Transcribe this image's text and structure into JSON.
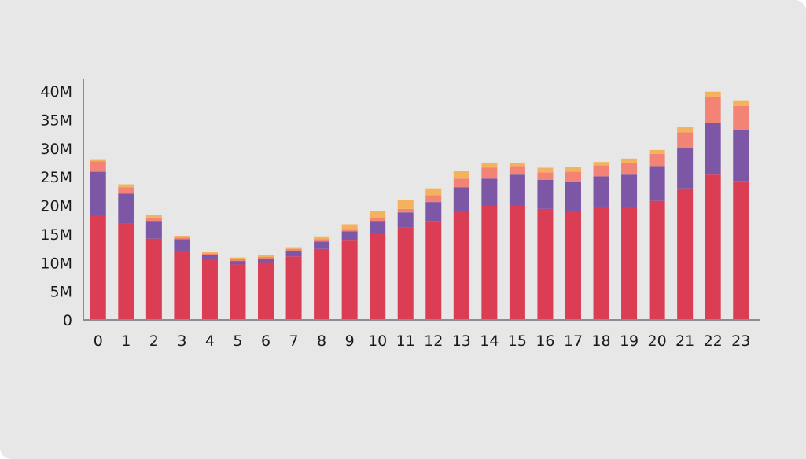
{
  "chart_data": {
    "type": "bar",
    "stacked": true,
    "title": "",
    "xlabel": "",
    "ylabel": "",
    "categories": [
      "0",
      "1",
      "2",
      "3",
      "4",
      "5",
      "6",
      "7",
      "8",
      "9",
      "10",
      "11",
      "12",
      "13",
      "14",
      "15",
      "16",
      "17",
      "18",
      "19",
      "20",
      "21",
      "22",
      "23"
    ],
    "ylim": [
      0,
      40000000
    ],
    "y_ticks": [
      0,
      5000000,
      10000000,
      15000000,
      20000000,
      25000000,
      30000000,
      35000000,
      40000000
    ],
    "y_tick_labels": [
      "0",
      "5M",
      "10M",
      "15M",
      "20M",
      "25M",
      "30M",
      "35M",
      "40M"
    ],
    "grid": false,
    "legend": false,
    "series": [
      {
        "color": "#da3d54",
        "values": [
          18400000,
          16900000,
          14200000,
          12100000,
          10600000,
          9700000,
          10100000,
          11100000,
          12400000,
          14000000,
          15200000,
          16100000,
          17300000,
          19100000,
          20000000,
          20000000,
          19400000,
          19100000,
          19800000,
          19700000,
          20800000,
          23000000,
          25400000,
          24300000
        ]
      },
      {
        "color": "#7d57a6",
        "values": [
          7500000,
          5200000,
          3100000,
          2000000,
          700000,
          600000,
          600000,
          1000000,
          1300000,
          1500000,
          2100000,
          2700000,
          3300000,
          4100000,
          4700000,
          5400000,
          5100000,
          5000000,
          5300000,
          5700000,
          6100000,
          7100000,
          9000000,
          9000000
        ]
      },
      {
        "color": "#f38375",
        "values": [
          1800000,
          1100000,
          600000,
          300000,
          300000,
          300000,
          300000,
          300000,
          400000,
          400000,
          500000,
          600000,
          1200000,
          1500000,
          1900000,
          1500000,
          1300000,
          1800000,
          1900000,
          2100000,
          2100000,
          2700000,
          4500000,
          4100000
        ]
      },
      {
        "color": "#f5b25c",
        "values": [
          400000,
          500000,
          400000,
          300000,
          300000,
          300000,
          300000,
          300000,
          500000,
          800000,
          1300000,
          1500000,
          1200000,
          1300000,
          900000,
          600000,
          800000,
          800000,
          600000,
          700000,
          700000,
          1000000,
          1000000,
          1000000
        ]
      }
    ]
  }
}
